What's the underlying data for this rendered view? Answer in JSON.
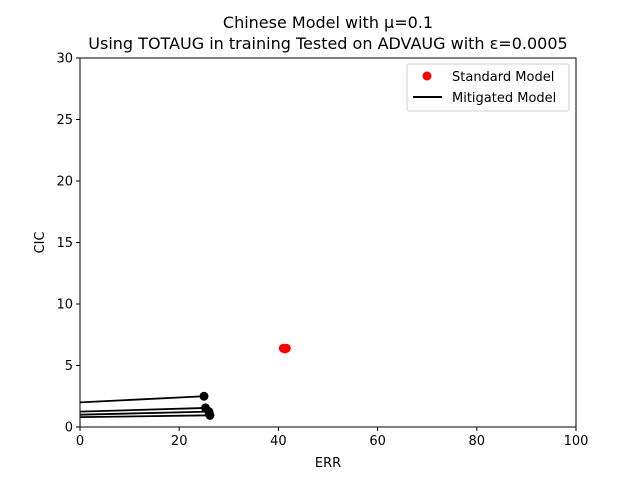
{
  "chart_data": {
    "type": "scatter",
    "title_line1": "Chinese Model with μ=0.1",
    "title_line2": "Using TOTAUG in training Tested on ADVAUG with ε=0.0005",
    "xlabel": "ERR",
    "ylabel": "CIC",
    "xlim": [
      0,
      100
    ],
    "ylim": [
      0,
      30
    ],
    "xticks": [
      0,
      20,
      40,
      60,
      80,
      100
    ],
    "yticks": [
      0,
      5,
      10,
      15,
      20,
      25,
      30
    ],
    "grid": false,
    "legend_position": "top-right",
    "colors": {
      "standard": "#ff0000",
      "mitigated": "#000000"
    },
    "series": [
      {
        "name": "Standard Model",
        "kind": "points",
        "points": [
          [
            41.0,
            6.4
          ],
          [
            41.6,
            6.4
          ],
          [
            41.3,
            6.35
          ]
        ]
      },
      {
        "name": "Mitigated Model",
        "kind": "lines",
        "lines": [
          {
            "from": [
              0,
              2.0
            ],
            "to": [
              25.0,
              2.5
            ]
          },
          {
            "from": [
              0,
              1.25
            ],
            "to": [
              25.3,
              1.55
            ]
          },
          {
            "from": [
              0,
              1.0
            ],
            "to": [
              26.0,
              1.25
            ]
          },
          {
            "from": [
              0,
              0.8
            ],
            "to": [
              26.2,
              0.95
            ]
          }
        ]
      }
    ],
    "legend": [
      {
        "label": "Standard Model",
        "marker": "dot"
      },
      {
        "label": "Mitigated Model",
        "marker": "line"
      }
    ]
  }
}
